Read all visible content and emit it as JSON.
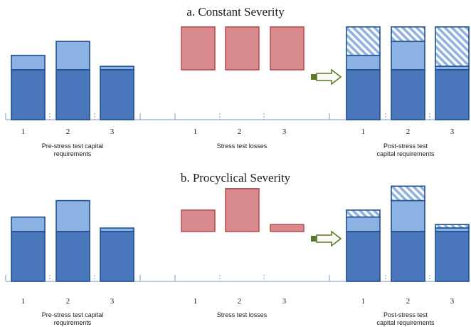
{
  "colors": {
    "base_fill": "#4a77bb",
    "base_stroke": "#1f4f8f",
    "pre_increment_fill": "#8cb1e3",
    "buffer_hatch_stripe": "#8fb2e2",
    "loss_fill": "#d98a8d",
    "loss_stroke": "#b54a52",
    "arrow_fill": "#fafaf5",
    "arrow_stroke": "#5a7a28",
    "axis_color": "#7a98c6"
  },
  "panels": [
    {
      "title": "a.  Constant Severity",
      "pre_stress": {
        "caption_lines": [
          "Pre-stress test capital",
          "requirements"
        ],
        "bank_labels": [
          "1",
          "2",
          "3"
        ],
        "base_capital": [
          1,
          1,
          1
        ],
        "additional_capital": [
          0.29,
          0.57,
          0.07
        ]
      },
      "stress_losses": {
        "caption_lines": [
          "Stress test losses"
        ],
        "bank_labels": [
          "1",
          "2",
          "3"
        ],
        "losses": [
          0.86,
          0.86,
          0.86
        ]
      },
      "arrow_icon": "arrow-right",
      "post_stress": {
        "caption_lines": [
          "Post-stress test",
          "capital requirements"
        ],
        "bank_labels": [
          "1",
          "2",
          "3"
        ],
        "base_capital": [
          1,
          1,
          1
        ],
        "additional_capital": [
          0.29,
          0.57,
          0.07
        ],
        "stress_buffer": [
          0.57,
          0.29,
          0.79
        ]
      }
    },
    {
      "title": "b.  Procyclical Severity",
      "pre_stress": {
        "caption_lines": [
          "Pre-stress test capital",
          "requirements"
        ],
        "bank_labels": [
          "1",
          "2",
          "3"
        ],
        "base_capital": [
          1,
          1,
          1
        ],
        "additional_capital": [
          0.29,
          0.62,
          0.07
        ]
      },
      "stress_losses": {
        "caption_lines": [
          "Stress test losses"
        ],
        "bank_labels": [
          "1",
          "2",
          "3"
        ],
        "losses": [
          0.43,
          0.86,
          0.14
        ]
      },
      "arrow_icon": "arrow-right",
      "post_stress": {
        "caption_lines": [
          "Post-stress test",
          "capital requirements"
        ],
        "bank_labels": [
          "1",
          "2",
          "3"
        ],
        "base_capital": [
          1,
          1,
          1
        ],
        "additional_capital": [
          0.29,
          0.62,
          0.07
        ],
        "stress_buffer": [
          0.14,
          0.29,
          0.07
        ]
      }
    }
  ]
}
